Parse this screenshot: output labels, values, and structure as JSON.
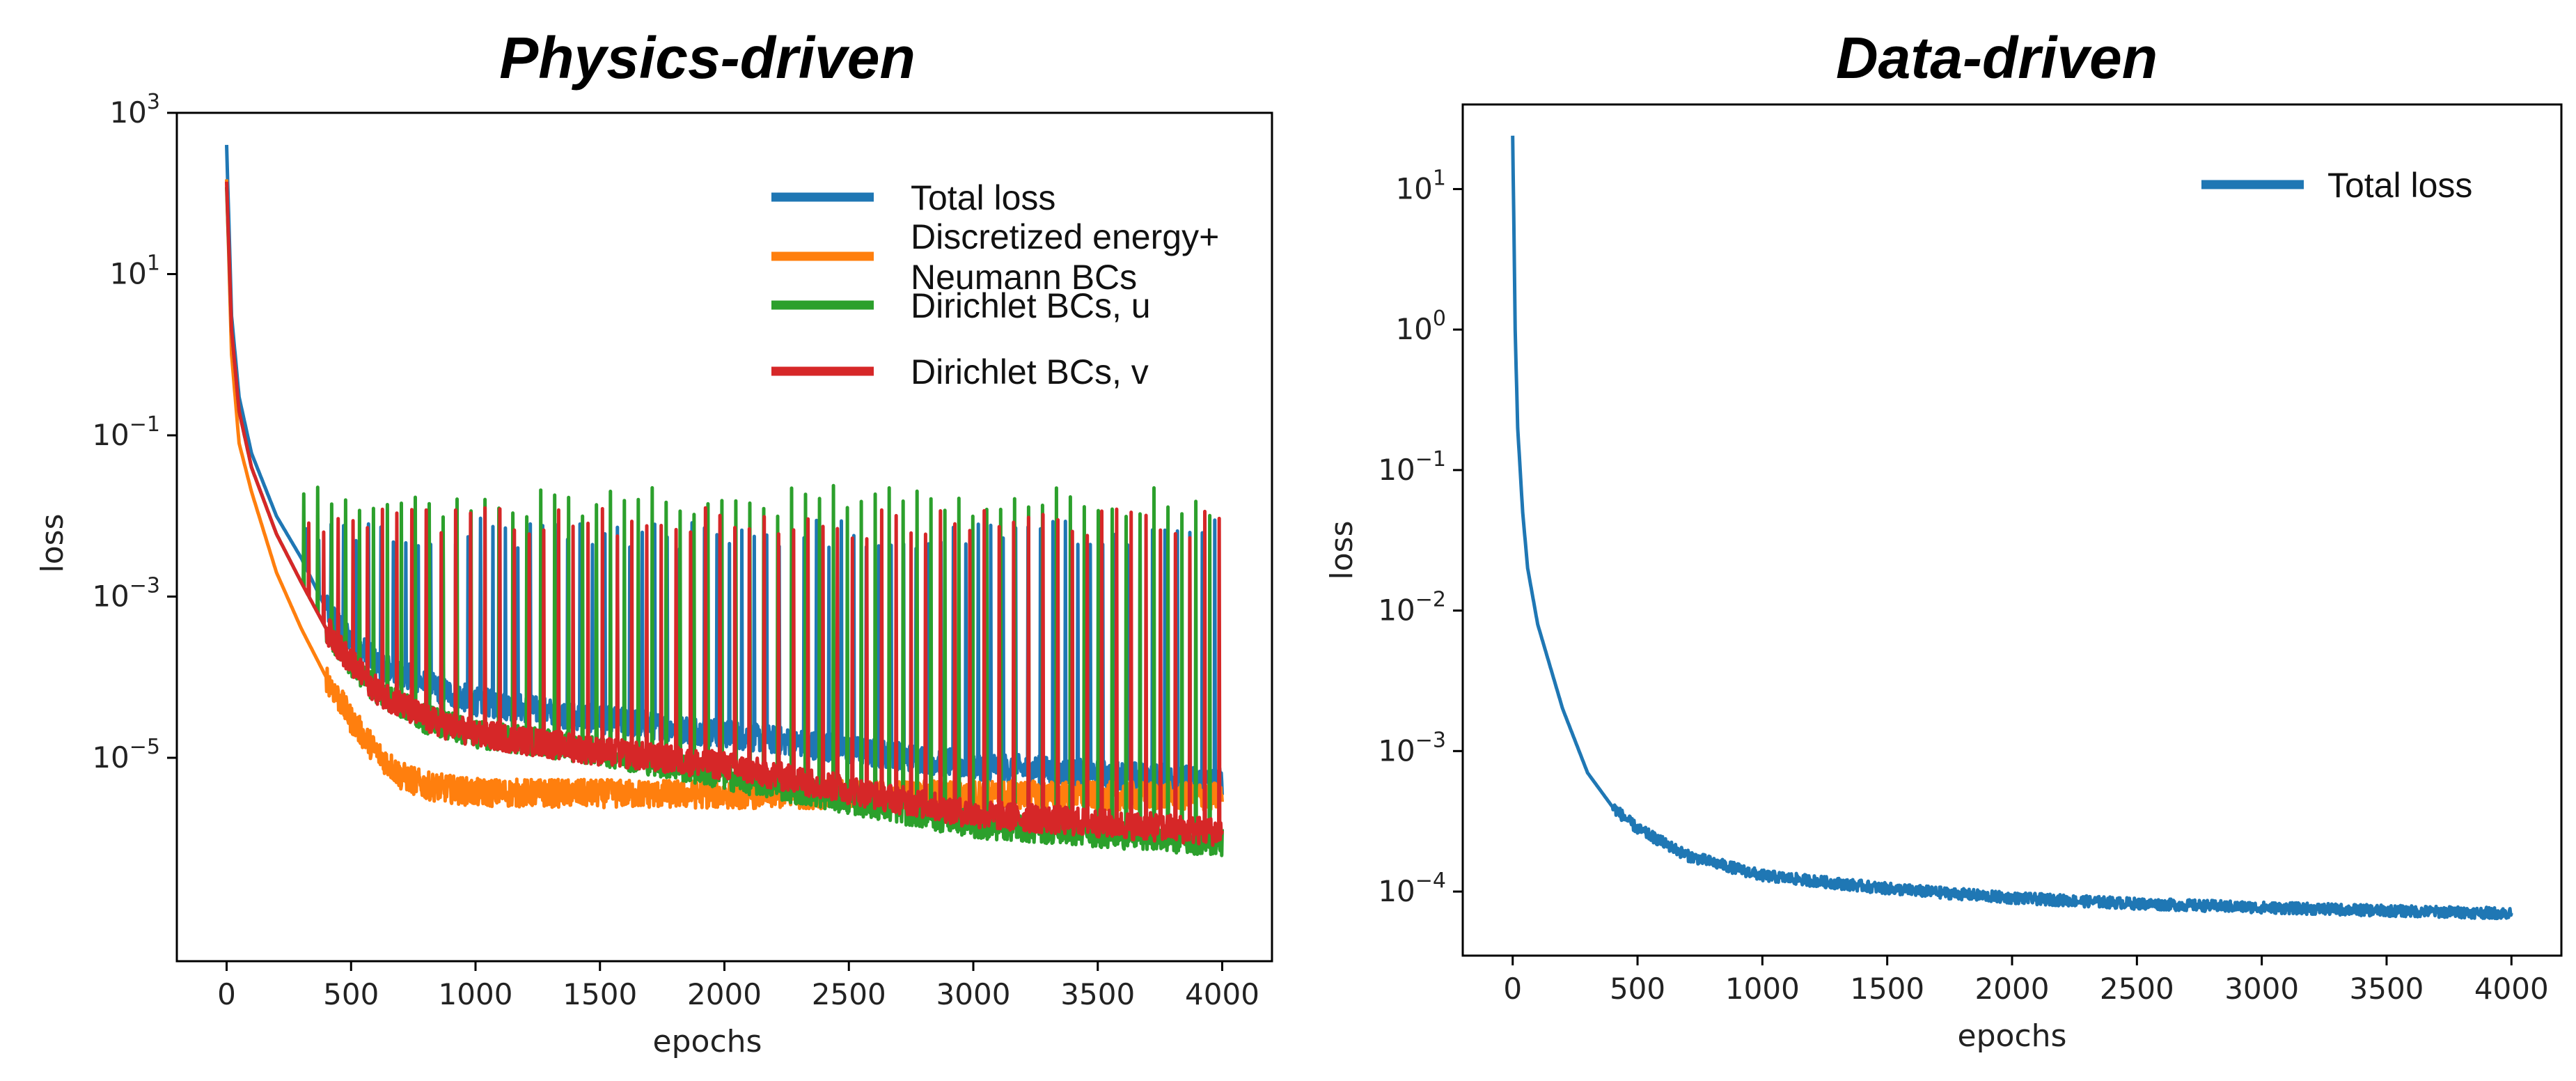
{
  "chart_data": [
    {
      "type": "line",
      "title": "Physics-driven",
      "xlabel": "epochs",
      "ylabel": "loss",
      "yscale": "log",
      "xlim": [
        -200,
        4200
      ],
      "ylim": [
        3e-08,
        1000
      ],
      "xticks": [
        0,
        500,
        1000,
        1500,
        2000,
        2500,
        3000,
        3500,
        4000
      ],
      "xtick_labels": [
        "0",
        "500",
        "1000",
        "1500",
        "2000",
        "2500",
        "3000",
        "3500",
        "4000"
      ],
      "yticks": [
        1000,
        10,
        0.1,
        0.001,
        1e-05
      ],
      "ytick_labels": [
        {
          "b": "10",
          "e": "3"
        },
        {
          "b": "10",
          "e": "1"
        },
        {
          "b": "10",
          "e": "−1"
        },
        {
          "b": "10",
          "e": "−3"
        },
        {
          "b": "10",
          "e": "−5"
        }
      ],
      "legend_position": "top-right",
      "series": [
        {
          "name": "Total loss",
          "color": "#1f77b4",
          "spike_from": 320,
          "spike_top": 0.006,
          "points": [
            [
              0,
              400
            ],
            [
              20,
              3
            ],
            [
              50,
              0.3
            ],
            [
              100,
              0.06
            ],
            [
              200,
              0.01
            ],
            [
              300,
              0.003
            ],
            [
              400,
              0.0007
            ],
            [
              500,
              0.0003
            ],
            [
              600,
              0.00015
            ],
            [
              800,
              8e-05
            ],
            [
              1000,
              5e-05
            ],
            [
              1500,
              3e-05
            ],
            [
              2000,
              2e-05
            ],
            [
              3000,
              8e-06
            ],
            [
              4000,
              5e-06
            ]
          ]
        },
        {
          "name": "Discretized energy+ Neumann BCs",
          "legend_lines": [
            "Discretized energy+",
            "Neumann BCs"
          ],
          "color": "#ff7f0e",
          "spike_from": null,
          "spike_top": null,
          "points": [
            [
              0,
              150
            ],
            [
              20,
              1
            ],
            [
              50,
              0.08
            ],
            [
              100,
              0.02
            ],
            [
              200,
              0.002
            ],
            [
              300,
              0.0004
            ],
            [
              400,
              0.0001
            ],
            [
              500,
              3e-05
            ],
            [
              600,
              1.2e-05
            ],
            [
              700,
              6e-06
            ],
            [
              800,
              4.5e-06
            ],
            [
              1000,
              3.7e-06
            ],
            [
              2000,
              3.5e-06
            ],
            [
              3000,
              3.5e-06
            ],
            [
              4000,
              3.3e-06
            ]
          ]
        },
        {
          "name": "Dirichlet BCs, u",
          "color": "#2ca02c",
          "spike_from": 310,
          "spike_top": 0.015,
          "points": [
            [
              0,
              120
            ],
            [
              20,
              2
            ],
            [
              50,
              0.2
            ],
            [
              100,
              0.04
            ],
            [
              200,
              0.006
            ],
            [
              300,
              0.0015
            ],
            [
              400,
              0.0004
            ],
            [
              500,
              0.00015
            ],
            [
              600,
              7e-05
            ],
            [
              800,
              3e-05
            ],
            [
              1000,
              2e-05
            ],
            [
              1500,
              1.2e-05
            ],
            [
              2000,
              6e-06
            ],
            [
              3000,
              1.5e-06
            ],
            [
              4000,
              9e-07
            ]
          ]
        },
        {
          "name": "Dirichlet BCs, v",
          "color": "#d62728",
          "spike_from": 330,
          "spike_top": 0.008,
          "points": [
            [
              0,
              140
            ],
            [
              20,
              2
            ],
            [
              50,
              0.2
            ],
            [
              100,
              0.04
            ],
            [
              200,
              0.006
            ],
            [
              300,
              0.0015
            ],
            [
              400,
              0.0004
            ],
            [
              500,
              0.00015
            ],
            [
              600,
              7e-05
            ],
            [
              800,
              3e-05
            ],
            [
              1000,
              2e-05
            ],
            [
              1500,
              1.2e-05
            ],
            [
              2000,
              8e-06
            ],
            [
              3000,
              2e-06
            ],
            [
              4000,
              1.2e-06
            ]
          ]
        }
      ]
    },
    {
      "type": "line",
      "title": "Data-driven",
      "xlabel": "epochs",
      "ylabel": "loss",
      "yscale": "log",
      "xlim": [
        -200,
        4200
      ],
      "ylim": [
        3.5e-05,
        40
      ],
      "xticks": [
        0,
        500,
        1000,
        1500,
        2000,
        2500,
        3000,
        3500,
        4000
      ],
      "xtick_labels": [
        "0",
        "500",
        "1000",
        "1500",
        "2000",
        "2500",
        "3000",
        "3500",
        "4000"
      ],
      "yticks": [
        10,
        1,
        0.1,
        0.01,
        0.001,
        0.0001
      ],
      "ytick_labels": [
        {
          "b": "10",
          "e": "1"
        },
        {
          "b": "10",
          "e": "0"
        },
        {
          "b": "10",
          "e": "−1"
        },
        {
          "b": "10",
          "e": "−2"
        },
        {
          "b": "10",
          "e": "−3"
        },
        {
          "b": "10",
          "e": "−4"
        }
      ],
      "legend_position": "top-right",
      "series": [
        {
          "name": "Total loss",
          "color": "#1f77b4",
          "points": [
            [
              0,
              24
            ],
            [
              5,
              5
            ],
            [
              10,
              1
            ],
            [
              20,
              0.2
            ],
            [
              40,
              0.05
            ],
            [
              60,
              0.02
            ],
            [
              100,
              0.008
            ],
            [
              150,
              0.004
            ],
            [
              200,
              0.002
            ],
            [
              300,
              0.0007
            ],
            [
              400,
              0.0004
            ],
            [
              500,
              0.00028
            ],
            [
              700,
              0.00018
            ],
            [
              1000,
              0.00013
            ],
            [
              1500,
              0.000105
            ],
            [
              2000,
              9e-05
            ],
            [
              2500,
              8.2e-05
            ],
            [
              3000,
              7.7e-05
            ],
            [
              3500,
              7.3e-05
            ],
            [
              4000,
              7e-05
            ]
          ]
        }
      ]
    }
  ]
}
